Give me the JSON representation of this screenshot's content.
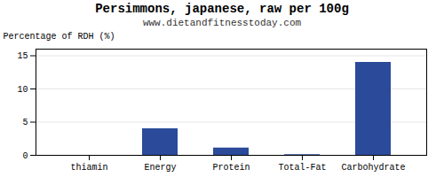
{
  "chart_data": {
    "type": "bar",
    "title": "Persimmons, japanese, raw per 100g",
    "subtitle": "www.dietandfitnesstoday.com",
    "categories": [
      "thiamin",
      "Energy",
      "Protein",
      "Total-Fat",
      "Carbohydrate"
    ],
    "values": [
      0,
      4.0,
      1.1,
      0.1,
      14.0
    ],
    "color": "#2b4a9a",
    "ylabel": "Percentage of RDH (%)",
    "ylim": [
      0,
      16
    ],
    "yticks": [
      0,
      5,
      10,
      15
    ],
    "grid": true
  }
}
